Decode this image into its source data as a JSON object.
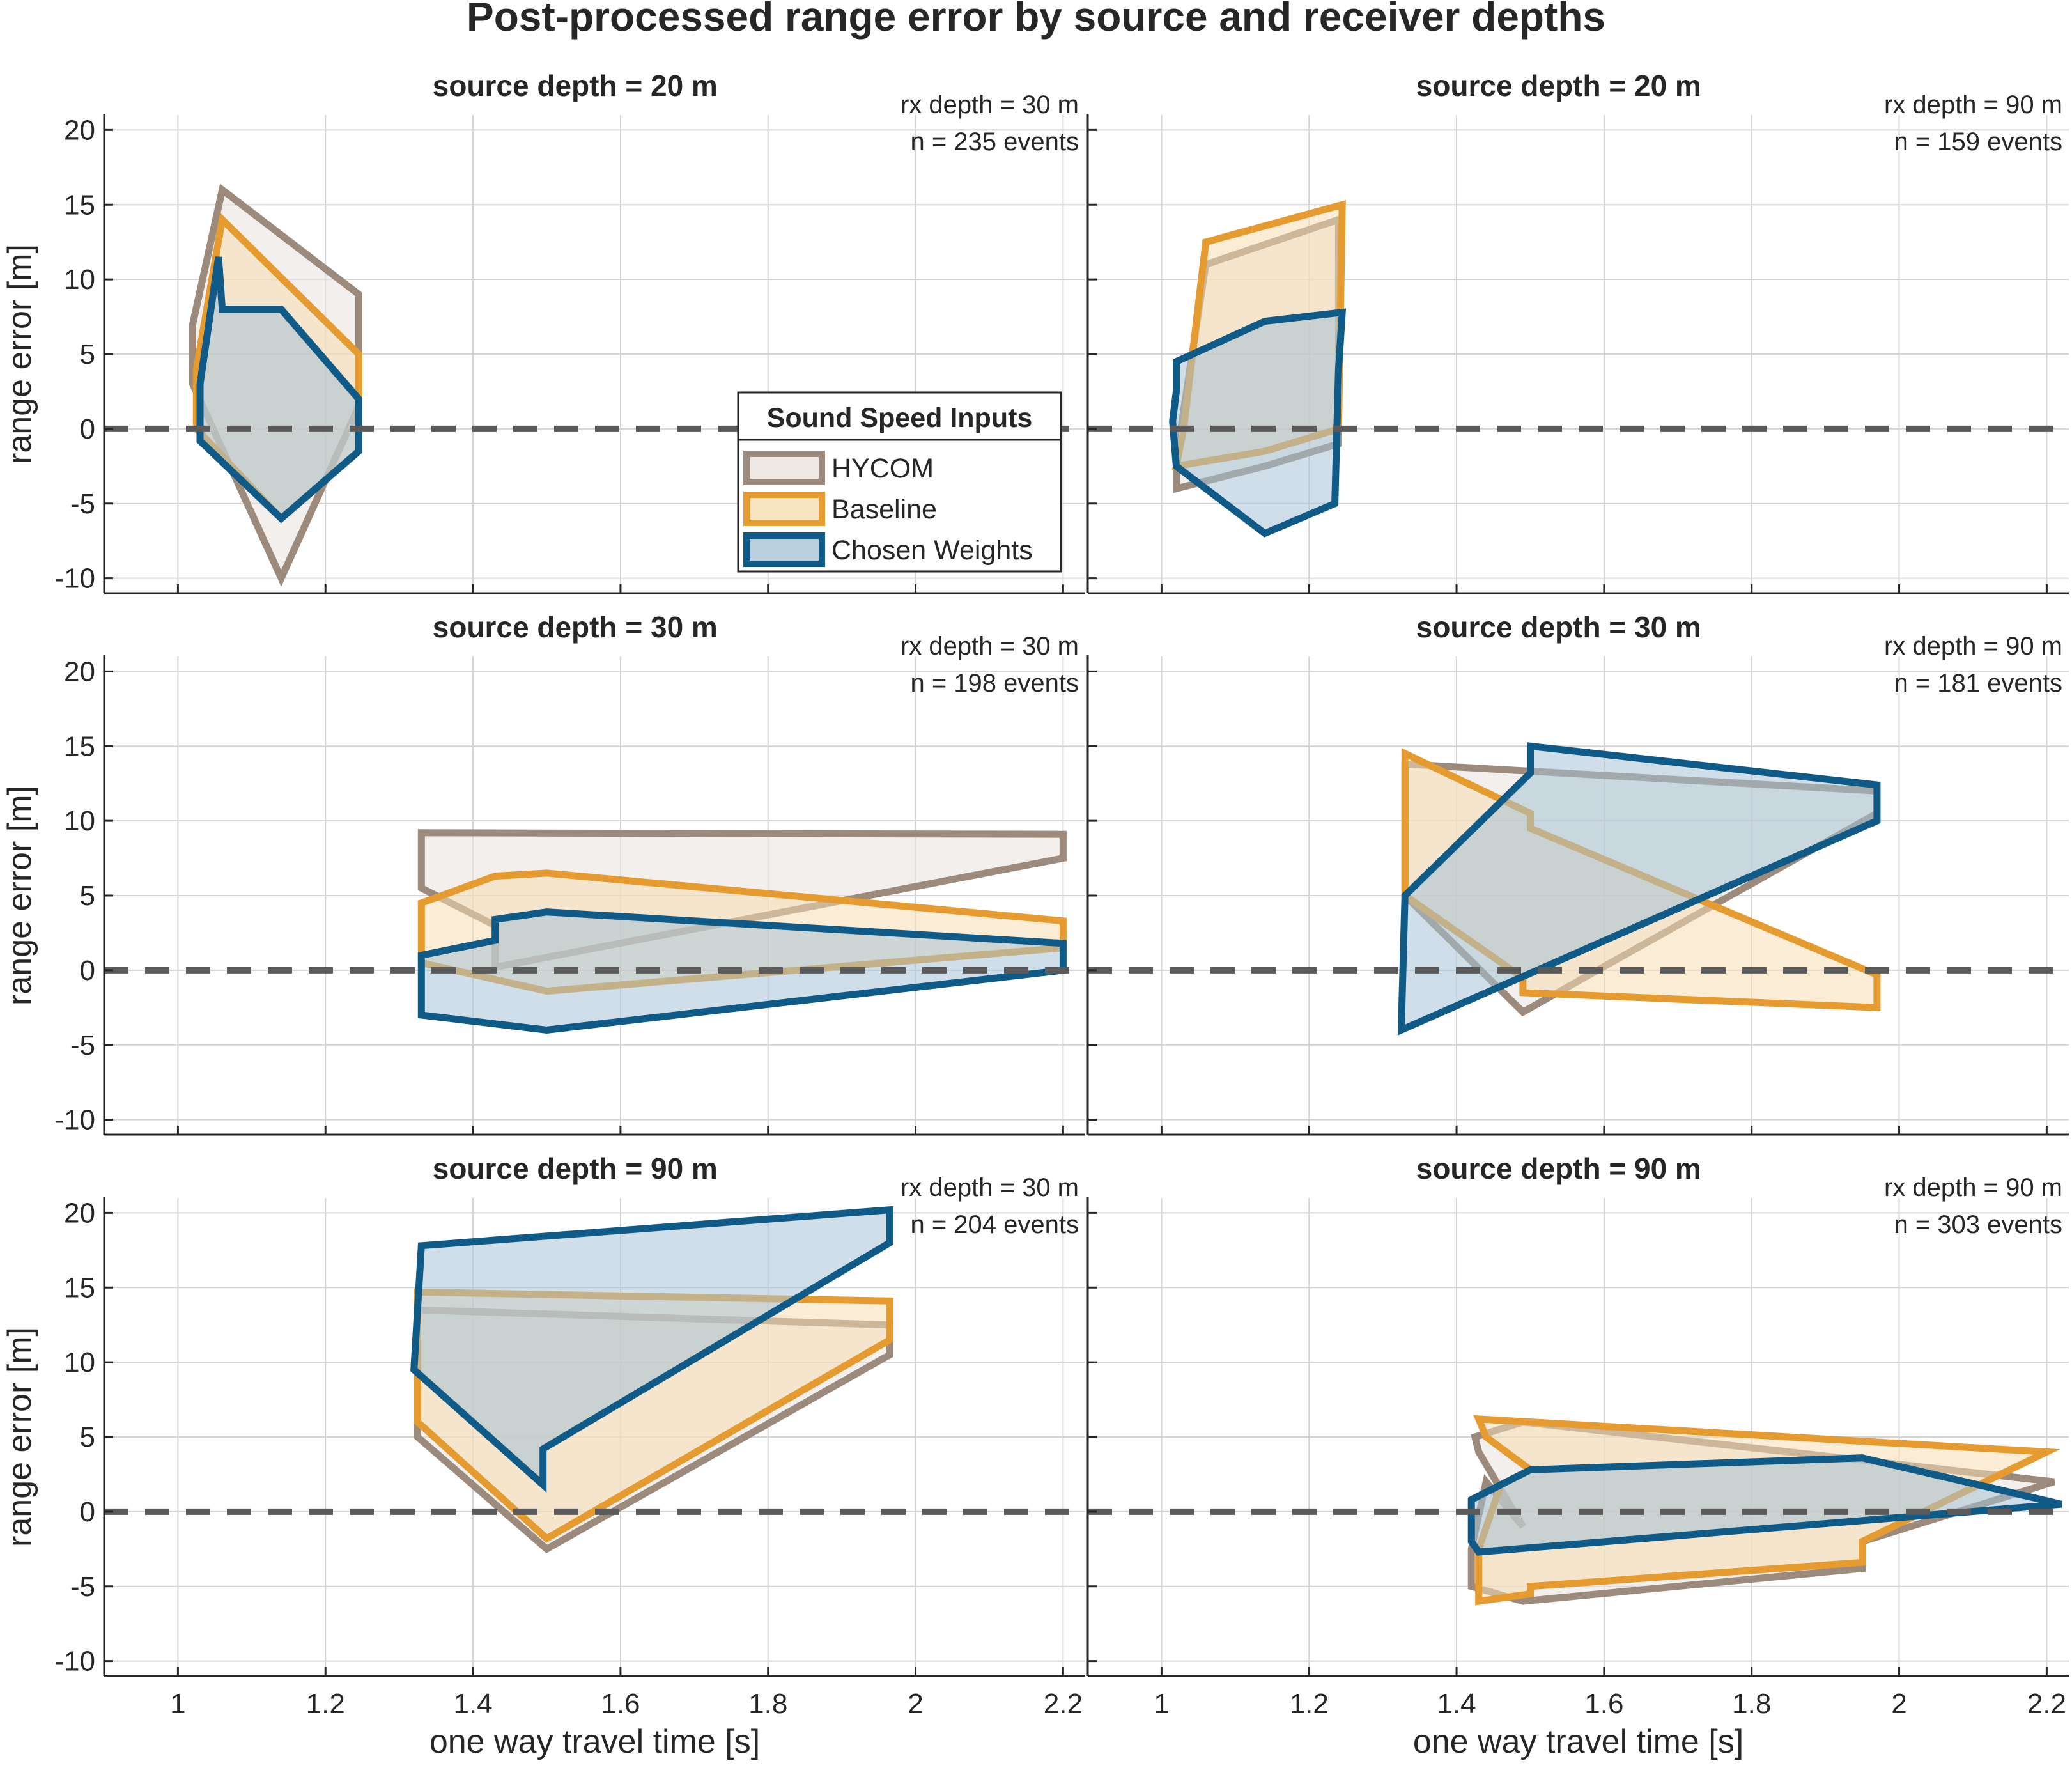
{
  "figure_title": "Post-processed range error by source and receiver depths",
  "legend": {
    "title": "Sound Speed Inputs",
    "entries": [
      {
        "label": "HYCOM",
        "color": "#9c8a7c",
        "fill": "#e8e2dc"
      },
      {
        "label": "Baseline",
        "color": "#e59b2f",
        "fill": "#f6ddb2"
      },
      {
        "label": "Chosen Weights",
        "color": "#0f5a86",
        "fill": "#a8c3d6"
      }
    ]
  },
  "chart_data": [
    {
      "type": "area",
      "title": "source depth = 20 m",
      "annotation": [
        "rx depth = 30 m",
        "n = 235 events"
      ],
      "xlabel": "",
      "ylabel": "range error [m]",
      "xlim": [
        0.9,
        2.23
      ],
      "ylim": [
        -11,
        21
      ],
      "xticks": [
        "1",
        "1.2",
        "1.4",
        "1.6",
        "1.8",
        "2",
        "2.2"
      ],
      "yticks": [
        "20",
        "15",
        "10",
        "5",
        "0",
        "-5",
        "-10"
      ],
      "grid": true,
      "reference_line_y": 0,
      "series": [
        {
          "name": "HYCOM",
          "polygon": [
            [
              1.02,
              7
            ],
            [
              1.06,
              16
            ],
            [
              1.245,
              9
            ],
            [
              1.245,
              1.5
            ],
            [
              1.14,
              -10
            ],
            [
              1.02,
              3
            ]
          ]
        },
        {
          "name": "Baseline",
          "polygon": [
            [
              1.025,
              4
            ],
            [
              1.06,
              14
            ],
            [
              1.245,
              5
            ],
            [
              1.245,
              -1.5
            ],
            [
              1.14,
              -6
            ],
            [
              1.025,
              0
            ]
          ]
        },
        {
          "name": "Chosen Weights",
          "polygon": [
            [
              1.03,
              3
            ],
            [
              1.055,
              11.5
            ],
            [
              1.06,
              8
            ],
            [
              1.14,
              8
            ],
            [
              1.245,
              2
            ],
            [
              1.245,
              -1.5
            ],
            [
              1.14,
              -6
            ],
            [
              1.03,
              -0.8
            ]
          ]
        }
      ]
    },
    {
      "type": "area",
      "title": "source depth = 20 m",
      "annotation": [
        "rx depth = 90 m",
        "n = 159 events"
      ],
      "xlabel": "",
      "ylabel": "",
      "xlim": [
        0.9,
        2.23
      ],
      "ylim": [
        -11,
        21
      ],
      "xticks": [
        "1",
        "1.2",
        "1.4",
        "1.6",
        "1.8",
        "2",
        "2.2"
      ],
      "yticks": [],
      "grid": true,
      "reference_line_y": 0,
      "series": [
        {
          "name": "HYCOM",
          "polygon": [
            [
              1.06,
              11
            ],
            [
              1.24,
              14
            ],
            [
              1.24,
              -1
            ],
            [
              1.14,
              -2.5
            ],
            [
              1.02,
              -4
            ],
            [
              1.02,
              -2
            ]
          ]
        },
        {
          "name": "Baseline",
          "polygon": [
            [
              1.06,
              12.5
            ],
            [
              1.245,
              15
            ],
            [
              1.24,
              0
            ],
            [
              1.14,
              -1.5
            ],
            [
              1.02,
              -2.5
            ],
            [
              1.03,
              0
            ]
          ]
        },
        {
          "name": "Chosen Weights",
          "polygon": [
            [
              1.02,
              4.5
            ],
            [
              1.14,
              7.2
            ],
            [
              1.245,
              7.8
            ],
            [
              1.24,
              4
            ],
            [
              1.235,
              -5
            ],
            [
              1.14,
              -7
            ],
            [
              1.02,
              -2.5
            ],
            [
              1.015,
              0.5
            ],
            [
              1.02,
              2.5
            ]
          ]
        }
      ]
    },
    {
      "type": "area",
      "title": "source depth = 30 m",
      "annotation": [
        "rx depth = 30 m",
        "n = 198 events"
      ],
      "xlabel": "",
      "ylabel": "range error [m]",
      "xlim": [
        0.9,
        2.23
      ],
      "ylim": [
        -11,
        21
      ],
      "xticks": [
        "1",
        "1.2",
        "1.4",
        "1.6",
        "1.8",
        "2",
        "2.2"
      ],
      "yticks": [
        "20",
        "15",
        "10",
        "5",
        "0",
        "-5",
        "-10"
      ],
      "grid": true,
      "reference_line_y": 0,
      "series": [
        {
          "name": "HYCOM",
          "polygon": [
            [
              1.33,
              9.2
            ],
            [
              2.2,
              9.1
            ],
            [
              2.2,
              7.5
            ],
            [
              1.43,
              0.2
            ],
            [
              1.43,
              3
            ],
            [
              1.33,
              5.5
            ]
          ]
        },
        {
          "name": "Baseline",
          "polygon": [
            [
              1.33,
              4.5
            ],
            [
              1.43,
              6.3
            ],
            [
              1.5,
              6.5
            ],
            [
              2.2,
              3.3
            ],
            [
              2.2,
              1.5
            ],
            [
              1.5,
              -1.4
            ],
            [
              1.33,
              0.5
            ]
          ]
        },
        {
          "name": "Chosen Weights",
          "polygon": [
            [
              1.33,
              1
            ],
            [
              1.43,
              2
            ],
            [
              1.43,
              3.4
            ],
            [
              1.5,
              3.9
            ],
            [
              2.2,
              1.8
            ],
            [
              2.2,
              0
            ],
            [
              1.5,
              -4
            ],
            [
              1.33,
              -3
            ]
          ]
        }
      ]
    },
    {
      "type": "area",
      "title": "source depth = 30 m",
      "annotation": [
        "rx depth = 90 m",
        "n = 181 events"
      ],
      "xlabel": "",
      "ylabel": "",
      "xlim": [
        0.9,
        2.23
      ],
      "ylim": [
        -11,
        21
      ],
      "xticks": [
        "1",
        "1.2",
        "1.4",
        "1.6",
        "1.8",
        "2",
        "2.2"
      ],
      "yticks": [],
      "grid": true,
      "reference_line_y": 0,
      "series": [
        {
          "name": "HYCOM",
          "polygon": [
            [
              1.33,
              13.8
            ],
            [
              1.97,
              12
            ],
            [
              1.97,
              10.5
            ],
            [
              1.49,
              -2.8
            ],
            [
              1.33,
              5
            ]
          ]
        },
        {
          "name": "Baseline",
          "polygon": [
            [
              1.33,
              14.5
            ],
            [
              1.5,
              10.5
            ],
            [
              1.5,
              9.5
            ],
            [
              1.97,
              -0.3
            ],
            [
              1.97,
              -2.5
            ],
            [
              1.49,
              -1.5
            ],
            [
              1.49,
              -0.5
            ],
            [
              1.33,
              5
            ]
          ]
        },
        {
          "name": "Chosen Weights",
          "polygon": [
            [
              1.33,
              5
            ],
            [
              1.5,
              13.2
            ],
            [
              1.5,
              15
            ],
            [
              1.97,
              12.4
            ],
            [
              1.97,
              10
            ],
            [
              1.325,
              -4
            ]
          ]
        }
      ]
    },
    {
      "type": "area",
      "title": "source depth = 90 m",
      "annotation": [
        "rx depth = 30 m",
        "n = 204 events"
      ],
      "xlabel": "one way travel time [s]",
      "ylabel": "range error [m]",
      "xlim": [
        0.9,
        2.23
      ],
      "ylim": [
        -11,
        21
      ],
      "xticks": [
        "1",
        "1.2",
        "1.4",
        "1.6",
        "1.8",
        "2",
        "2.2"
      ],
      "yticks": [
        "20",
        "15",
        "10",
        "5",
        "0",
        "-5",
        "-10"
      ],
      "grid": true,
      "reference_line_y": 0,
      "series": [
        {
          "name": "HYCOM",
          "polygon": [
            [
              1.325,
              13.5
            ],
            [
              1.965,
              12.5
            ],
            [
              1.965,
              10.5
            ],
            [
              1.5,
              -2.5
            ],
            [
              1.325,
              5
            ]
          ]
        },
        {
          "name": "Baseline",
          "polygon": [
            [
              1.325,
              14.7
            ],
            [
              1.965,
              14.1
            ],
            [
              1.965,
              11.5
            ],
            [
              1.5,
              -1.8
            ],
            [
              1.325,
              6
            ]
          ]
        },
        {
          "name": "Chosen Weights",
          "polygon": [
            [
              1.33,
              17.8
            ],
            [
              1.965,
              20.2
            ],
            [
              1.965,
              18
            ],
            [
              1.495,
              4.2
            ],
            [
              1.495,
              1.8
            ],
            [
              1.32,
              9.5
            ]
          ]
        }
      ]
    },
    {
      "type": "area",
      "title": "source depth = 90 m",
      "annotation": [
        "rx depth = 90 m",
        "n = 303 events"
      ],
      "xlabel": "one way travel time [s]",
      "ylabel": "",
      "xlim": [
        0.9,
        2.23
      ],
      "ylim": [
        -11,
        21
      ],
      "xticks": [
        "1",
        "1.2",
        "1.4",
        "1.6",
        "1.8",
        "2",
        "2.2"
      ],
      "yticks": [],
      "grid": true,
      "reference_line_y": 0,
      "series": [
        {
          "name": "HYCOM",
          "polygon": [
            [
              1.425,
              5
            ],
            [
              1.49,
              6
            ],
            [
              2.21,
              2
            ],
            [
              1.95,
              -2
            ],
            [
              1.95,
              -3.8
            ],
            [
              1.49,
              -6
            ],
            [
              1.42,
              -5
            ],
            [
              1.42,
              -2.5
            ],
            [
              1.44,
              2
            ],
            [
              1.49,
              -1
            ],
            [
              1.43,
              4
            ]
          ]
        },
        {
          "name": "Baseline",
          "polygon": [
            [
              1.43,
              6.2
            ],
            [
              2.2,
              4
            ],
            [
              1.95,
              -2
            ],
            [
              1.95,
              -3.4
            ],
            [
              1.5,
              -5
            ],
            [
              1.5,
              -5.5
            ],
            [
              1.43,
              -6
            ],
            [
              1.43,
              -2.5
            ],
            [
              1.46,
              1.8
            ],
            [
              1.5,
              2.8
            ],
            [
              1.44,
              5
            ]
          ]
        },
        {
          "name": "Chosen Weights",
          "polygon": [
            [
              1.42,
              0.8
            ],
            [
              1.46,
              1.8
            ],
            [
              1.5,
              2.8
            ],
            [
              1.95,
              3.6
            ],
            [
              2.22,
              0.5
            ],
            [
              1.43,
              -2.7
            ],
            [
              1.42,
              -2
            ]
          ]
        }
      ]
    }
  ]
}
